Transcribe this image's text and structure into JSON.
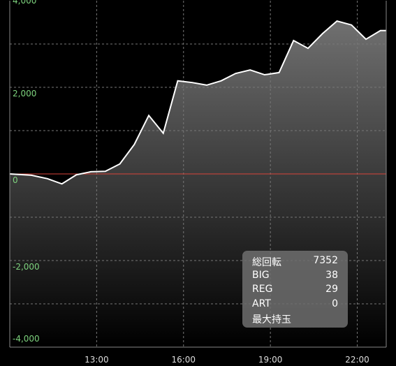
{
  "chart_data": {
    "type": "area",
    "x": [
      10.0,
      10.75,
      11.3,
      11.8,
      12.3,
      12.8,
      13.3,
      13.8,
      14.3,
      14.8,
      15.3,
      15.8,
      16.3,
      16.8,
      17.3,
      17.8,
      18.3,
      18.8,
      19.3,
      19.8,
      20.3,
      20.8,
      21.3,
      21.8,
      22.3,
      22.8,
      23.0
    ],
    "values": [
      0,
      -30,
      -110,
      -230,
      -20,
      50,
      60,
      230,
      680,
      1350,
      940,
      2150,
      2110,
      2050,
      2150,
      2320,
      2400,
      2290,
      2340,
      3080,
      2900,
      3240,
      3530,
      3440,
      3110,
      3310,
      3310
    ],
    "color": "#ffffff",
    "zero_line_color": "#d9443a",
    "xlim": [
      10,
      23
    ],
    "xticks": [
      {
        "value": 13,
        "label": "13:00"
      },
      {
        "value": 16,
        "label": "16:00"
      },
      {
        "value": 19,
        "label": "19:00"
      },
      {
        "value": 22,
        "label": "22:00"
      }
    ],
    "ylim": [
      -4000,
      4000
    ],
    "yticks": [
      {
        "value": 4000,
        "label": "4,000"
      },
      {
        "value": 2000,
        "label": "2,000"
      },
      0,
      {
        "value": -2000,
        "label": "-2,000"
      },
      {
        "value": -4000,
        "label": "-4,000"
      }
    ],
    "grid_lines": [
      3000,
      2000,
      1000,
      -1000,
      -2000,
      -3000
    ],
    "grid": true,
    "info": [
      {
        "label": "総回転",
        "value": "7352"
      },
      {
        "label": "BIG",
        "value": "38"
      },
      {
        "label": "REG",
        "value": "29"
      },
      {
        "label": "ART",
        "value": "0"
      },
      {
        "label": "最大持玉"
      }
    ]
  }
}
